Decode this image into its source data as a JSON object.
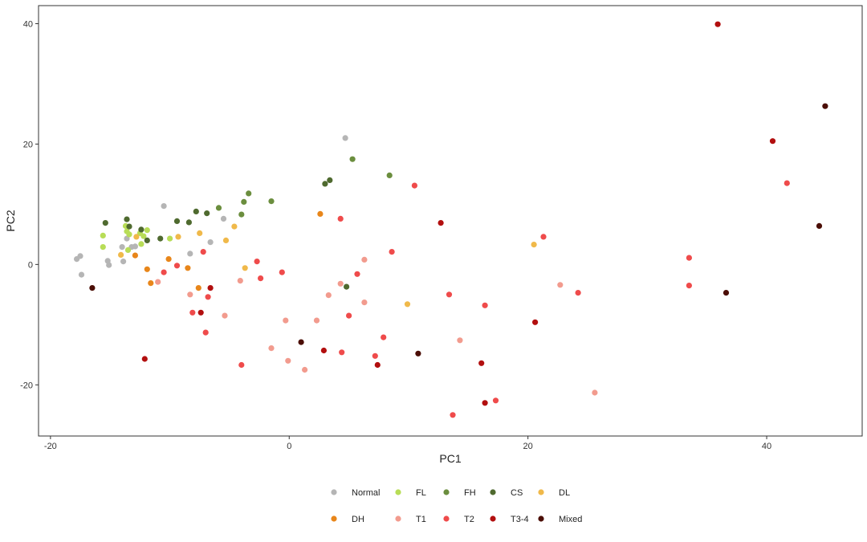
{
  "chart_data": {
    "type": "scatter",
    "title": "",
    "xlabel": "PC1",
    "ylabel": "PC2",
    "xlim": [
      -21,
      48
    ],
    "ylim": [
      -28.5,
      43
    ],
    "xticks": [
      "-20",
      "0",
      "20",
      "40"
    ],
    "xtick_values": [
      -20,
      0,
      20,
      40
    ],
    "yticks": [
      "-20",
      "0",
      "20",
      "40"
    ],
    "ytick_values": [
      -20,
      0,
      20,
      40
    ],
    "grid": false,
    "legend_position": "bottom",
    "series": [
      {
        "name": "Normal",
        "color": "#b5b5b5",
        "points": [
          [
            -17.8,
            0.9
          ],
          [
            -17.5,
            1.4
          ],
          [
            -17.4,
            -1.7
          ],
          [
            -15.2,
            0.6
          ],
          [
            -15.1,
            -0.1
          ],
          [
            -13.9,
            0.5
          ],
          [
            -14.0,
            2.9
          ],
          [
            -13.6,
            4.3
          ],
          [
            -13.2,
            2.9
          ],
          [
            -12.9,
            3.0
          ],
          [
            -10.5,
            9.7
          ],
          [
            -8.3,
            1.8
          ],
          [
            -6.6,
            3.7
          ],
          [
            -5.5,
            7.6
          ],
          [
            4.7,
            21.0
          ]
        ]
      },
      {
        "name": "FL",
        "color": "#b8dd57",
        "points": [
          [
            -15.6,
            4.8
          ],
          [
            -15.6,
            2.9
          ],
          [
            -13.7,
            6.4
          ],
          [
            -13.6,
            5.5
          ],
          [
            -13.4,
            5.0
          ],
          [
            -13.5,
            2.4
          ],
          [
            -12.4,
            3.4
          ],
          [
            -12.2,
            4.7
          ],
          [
            -11.9,
            5.7
          ],
          [
            -10.0,
            4.3
          ],
          [
            -12.5,
            5.2
          ]
        ]
      },
      {
        "name": "FH",
        "color": "#6b8e3e",
        "points": [
          [
            -5.9,
            9.4
          ],
          [
            -4.0,
            8.3
          ],
          [
            -3.8,
            10.4
          ],
          [
            -3.4,
            11.8
          ],
          [
            -1.5,
            10.5
          ],
          [
            5.3,
            17.5
          ],
          [
            8.4,
            14.8
          ]
        ]
      },
      {
        "name": "CS",
        "color": "#4f6a2f",
        "points": [
          [
            -15.4,
            6.9
          ],
          [
            -13.6,
            7.5
          ],
          [
            -13.4,
            6.3
          ],
          [
            -12.4,
            5.8
          ],
          [
            -11.9,
            4.0
          ],
          [
            -10.8,
            4.3
          ],
          [
            -9.4,
            7.2
          ],
          [
            -8.4,
            7.0
          ],
          [
            -7.8,
            8.8
          ],
          [
            -6.9,
            8.5
          ],
          [
            3.0,
            13.4
          ],
          [
            3.4,
            14.0
          ],
          [
            4.8,
            -3.7
          ]
        ]
      },
      {
        "name": "DL",
        "color": "#f0b94a",
        "points": [
          [
            -14.1,
            1.6
          ],
          [
            -12.8,
            4.6
          ],
          [
            -9.3,
            4.6
          ],
          [
            -7.5,
            5.2
          ],
          [
            -5.3,
            4.0
          ],
          [
            -4.6,
            6.3
          ],
          [
            -3.7,
            -0.6
          ],
          [
            9.9,
            -6.6
          ],
          [
            20.5,
            3.3
          ]
        ]
      },
      {
        "name": "DH",
        "color": "#e8861a",
        "points": [
          [
            -12.9,
            1.5
          ],
          [
            -11.9,
            -0.8
          ],
          [
            -11.6,
            -3.1
          ],
          [
            -10.1,
            0.9
          ],
          [
            -8.5,
            -0.6
          ],
          [
            -7.6,
            -3.9
          ],
          [
            2.6,
            8.4
          ]
        ]
      },
      {
        "name": "T1",
        "color": "#f29b8e",
        "points": [
          [
            -11.0,
            -2.9
          ],
          [
            -8.3,
            -5.0
          ],
          [
            -5.4,
            -8.5
          ],
          [
            -4.1,
            -2.7
          ],
          [
            -1.5,
            -13.9
          ],
          [
            -0.3,
            -9.3
          ],
          [
            -0.1,
            -16.0
          ],
          [
            1.3,
            -17.5
          ],
          [
            2.3,
            -9.3
          ],
          [
            3.3,
            -5.1
          ],
          [
            4.3,
            -3.2
          ],
          [
            6.3,
            0.8
          ],
          [
            6.3,
            -6.3
          ],
          [
            14.3,
            -12.6
          ],
          [
            22.7,
            -3.4
          ],
          [
            25.6,
            -21.3
          ]
        ]
      },
      {
        "name": "T2",
        "color": "#ef4b4b",
        "points": [
          [
            -10.5,
            -1.3
          ],
          [
            -9.4,
            -0.2
          ],
          [
            -8.1,
            -8.0
          ],
          [
            -7.2,
            2.1
          ],
          [
            -7.0,
            -11.3
          ],
          [
            -6.8,
            -5.4
          ],
          [
            -4.0,
            -16.7
          ],
          [
            -2.7,
            0.5
          ],
          [
            -2.4,
            -2.3
          ],
          [
            -0.6,
            -1.3
          ],
          [
            4.3,
            7.6
          ],
          [
            4.4,
            -14.6
          ],
          [
            5.0,
            -8.5
          ],
          [
            5.7,
            -1.6
          ],
          [
            7.2,
            -15.2
          ],
          [
            7.9,
            -12.1
          ],
          [
            8.6,
            2.1
          ],
          [
            10.5,
            13.1
          ],
          [
            13.4,
            -5.0
          ],
          [
            13.7,
            -25.0
          ],
          [
            16.4,
            -6.8
          ],
          [
            17.3,
            -22.6
          ],
          [
            21.3,
            4.6
          ],
          [
            24.2,
            -4.7
          ],
          [
            33.5,
            1.1
          ],
          [
            33.5,
            -3.5
          ],
          [
            41.7,
            13.5
          ]
        ]
      },
      {
        "name": "T3-4",
        "color": "#b20f0f",
        "points": [
          [
            -12.1,
            -15.7
          ],
          [
            -7.4,
            -8.0
          ],
          [
            -6.6,
            -3.9
          ],
          [
            2.9,
            -14.3
          ],
          [
            7.4,
            -16.7
          ],
          [
            12.7,
            6.9
          ],
          [
            16.1,
            -16.4
          ],
          [
            16.4,
            -23.0
          ],
          [
            20.6,
            -9.6
          ],
          [
            35.9,
            39.9
          ],
          [
            40.5,
            20.5
          ]
        ]
      },
      {
        "name": "Mixed",
        "color": "#4b0e06",
        "points": [
          [
            -16.5,
            -3.9
          ],
          [
            1.0,
            -12.9
          ],
          [
            10.8,
            -14.8
          ],
          [
            36.6,
            -4.7
          ],
          [
            44.4,
            6.4
          ],
          [
            44.9,
            26.3
          ]
        ]
      }
    ]
  }
}
